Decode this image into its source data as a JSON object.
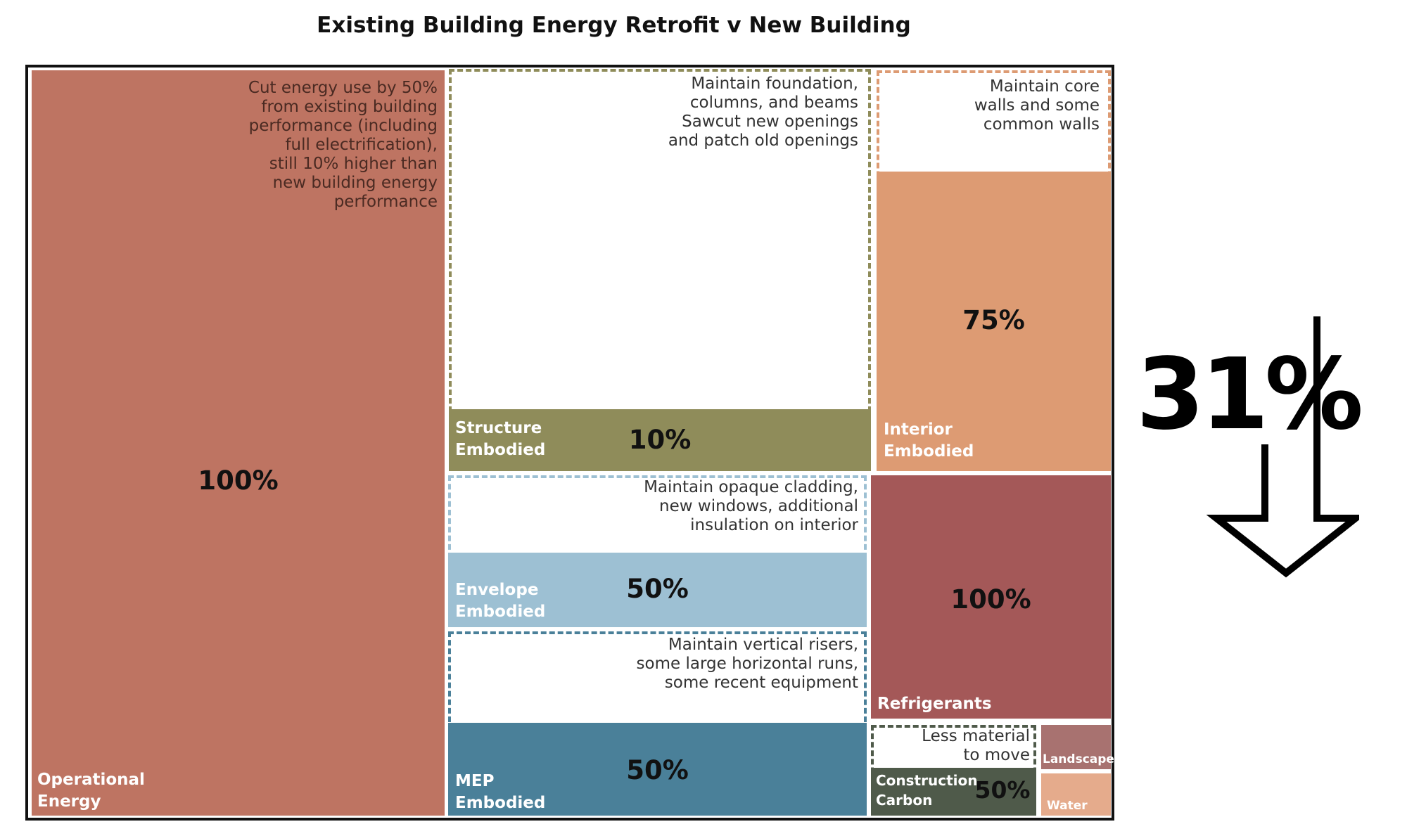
{
  "chart_data": {
    "type": "treemap",
    "title": "Existing Building Energy Retrofit v New Building",
    "total_reduction": "31%",
    "categories": [
      {
        "name": "Operational\nEnergy",
        "value_label": "100%",
        "value": 100,
        "note": "Cut energy use by 50%\nfrom existing building\nperformance (including\nfull electrification),\nstill 10% higher than\nnew building energy\nperformance",
        "color": "#be7462"
      },
      {
        "name": "Structure\nEmbodied",
        "value_label": "10%",
        "value": 10,
        "note": "Maintain foundation,\ncolumns, and beams\nSawcut new openings\nand patch old openings",
        "color": "#8f8c5a",
        "outline": "#8f8c5a"
      },
      {
        "name": "Interior\nEmbodied",
        "value_label": "75%",
        "value": 75,
        "note": "Maintain core\nwalls and some\ncommon walls",
        "color": "#dd9b73",
        "outline": "#dd9b73"
      },
      {
        "name": "Envelope\nEmbodied",
        "value_label": "50%",
        "value": 50,
        "note": "Maintain opaque cladding,\nnew windows, additional\ninsulation on interior",
        "color": "#9dc0d3",
        "outline": "#9dc0d3"
      },
      {
        "name": "MEP\nEmbodied",
        "value_label": "50%",
        "value": 50,
        "note": "Maintain vertical risers,\nsome large horizontal runs,\nsome recent equipment",
        "color": "#4a8099",
        "outline": "#4a8099"
      },
      {
        "name": "Refrigerants",
        "value_label": "100%",
        "value": 100,
        "color": "#a45858"
      },
      {
        "name": "Construction\nCarbon",
        "value_label": "50%",
        "value": 50,
        "note": "Less material\nto move",
        "color": "#4f5a4a",
        "outline": "#4f5a4a"
      },
      {
        "name": "Landscape",
        "color": "#a87270"
      },
      {
        "name": "Water",
        "color": "#e5ab8c"
      }
    ]
  }
}
